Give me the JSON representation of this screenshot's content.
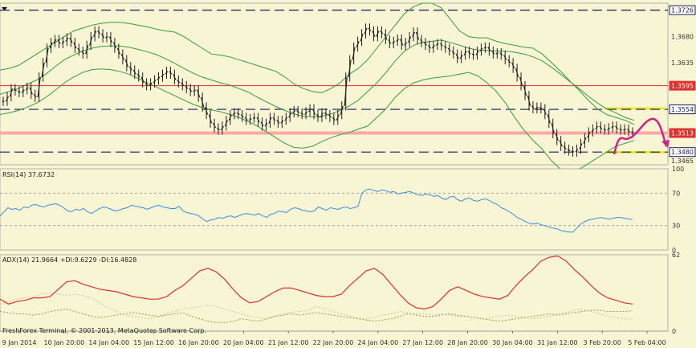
{
  "chart_data": {
    "type": "line",
    "colors": {
      "background": "#f7f5d4",
      "candle": "#222222",
      "bollinger": "#3c9a3c",
      "rsi": "#3a8fe0",
      "adx": "#e03030",
      "plus_di": "#c9c89a",
      "minus_di": "#9a9a40",
      "resistance": "#e03030",
      "support": "#ffa8a8",
      "dashed": "#1a1a5a",
      "highlight": "#e8e800",
      "forecast": "#d0208a"
    },
    "price_pane": {
      "ylim": [
        1.3458,
        1.3738
      ],
      "price_labels": [
        {
          "text": "1.3726",
          "value": 1.3726,
          "style": "dashed-box"
        },
        {
          "text": "1.3680",
          "value": 1.368,
          "style": "plain"
        },
        {
          "text": "1.3635",
          "value": 1.3635,
          "style": "plain"
        },
        {
          "text": "1.3595",
          "value": 1.3595,
          "style": "red-box"
        },
        {
          "text": "1.3554",
          "value": 1.3554,
          "style": "dashed-box"
        },
        {
          "text": "1.3513",
          "value": 1.3513,
          "style": "red-box"
        },
        {
          "text": "1.3480",
          "value": 1.348,
          "style": "dashed-box"
        },
        {
          "text": "1.3465",
          "value": 1.3465,
          "style": "plain"
        }
      ],
      "horizontal_levels": [
        {
          "value": 1.3726,
          "kind": "dashed"
        },
        {
          "value": 1.3595,
          "kind": "resistance"
        },
        {
          "value": 1.3554,
          "kind": "dashed"
        },
        {
          "value": 1.3513,
          "kind": "support"
        },
        {
          "value": 1.348,
          "kind": "dashed"
        }
      ],
      "close_series": [
        1.3568,
        1.3576,
        1.359,
        1.3586,
        1.3583,
        1.3588,
        1.3592,
        1.358,
        1.3575,
        1.361,
        1.3635,
        1.366,
        1.367,
        1.3675,
        1.3668,
        1.3672,
        1.3678,
        1.367,
        1.366,
        1.3655,
        1.365,
        1.3665,
        1.368,
        1.369,
        1.3685,
        1.3678,
        1.368,
        1.367,
        1.366,
        1.365,
        1.364,
        1.3628,
        1.3622,
        1.3615,
        1.361,
        1.36,
        1.3595,
        1.36,
        1.3605,
        1.361,
        1.3615,
        1.362,
        1.3615,
        1.3605,
        1.36,
        1.3595,
        1.359,
        1.3585,
        1.3588,
        1.3575,
        1.3558,
        1.3545,
        1.353,
        1.3522,
        1.3518,
        1.3525,
        1.3535,
        1.3545,
        1.3548,
        1.3545,
        1.354,
        1.3535,
        1.3538,
        1.354,
        1.3532,
        1.3525,
        1.353,
        1.354,
        1.3535,
        1.353,
        1.3535,
        1.354,
        1.3548,
        1.3552,
        1.3548,
        1.3545,
        1.355,
        1.3555,
        1.3545,
        1.354,
        1.3548,
        1.3545,
        1.354,
        1.3535,
        1.3545,
        1.356,
        1.361,
        1.364,
        1.3662,
        1.3672,
        1.3685,
        1.3695,
        1.369,
        1.368,
        1.369,
        1.3685,
        1.3675,
        1.3668,
        1.3672,
        1.3676,
        1.3665,
        1.367,
        1.368,
        1.3688,
        1.3675,
        1.367,
        1.3665,
        1.366,
        1.3665,
        1.3668,
        1.3664,
        1.366,
        1.3655,
        1.365,
        1.3642,
        1.3648,
        1.3655,
        1.365,
        1.3648,
        1.3655,
        1.366,
        1.3662,
        1.3655,
        1.365,
        1.3652,
        1.3648,
        1.364,
        1.3635,
        1.3625,
        1.361,
        1.3595,
        1.3578,
        1.356,
        1.3555,
        1.3558,
        1.3555,
        1.3545,
        1.353,
        1.3512,
        1.35,
        1.349,
        1.3485,
        1.3482,
        1.348,
        1.3485,
        1.3495,
        1.3505,
        1.3515,
        1.352,
        1.3525,
        1.352,
        1.3518,
        1.3522,
        1.3525,
        1.352,
        1.3518,
        1.352,
        1.3515,
        1.3513
      ],
      "upper_band": [
        1.3622,
        1.3625,
        1.363,
        1.364,
        1.365,
        1.366,
        1.367,
        1.368,
        1.369,
        1.3695,
        1.37,
        1.3703,
        1.3705,
        1.3705,
        1.3703,
        1.37,
        1.3697,
        1.3693,
        1.369,
        1.3688,
        1.368,
        1.367,
        1.366,
        1.365,
        1.3648,
        1.3645,
        1.364,
        1.3635,
        1.363,
        1.3625,
        1.362,
        1.361,
        1.3598,
        1.359,
        1.3585,
        1.3583,
        1.359,
        1.36,
        1.3615,
        1.3625,
        1.364,
        1.366,
        1.368,
        1.37,
        1.372,
        1.3732,
        1.3738,
        1.3738,
        1.373,
        1.371,
        1.369,
        1.368,
        1.3678,
        1.3678,
        1.3672,
        1.3668,
        1.3665,
        1.3662,
        1.366,
        1.365,
        1.3635,
        1.362,
        1.3603,
        1.3587,
        1.357,
        1.3555,
        1.3545,
        1.354,
        1.3535,
        1.3528
      ],
      "middle_band": [
        1.358,
        1.3585,
        1.359,
        1.3598,
        1.3605,
        1.3615,
        1.3628,
        1.364,
        1.3648,
        1.3655,
        1.366,
        1.3663,
        1.3664,
        1.3664,
        1.3662,
        1.3658,
        1.3654,
        1.3649,
        1.3642,
        1.3634,
        1.3625,
        1.3617,
        1.361,
        1.3605,
        1.36,
        1.3596,
        1.359,
        1.3584,
        1.3575,
        1.3567,
        1.3559,
        1.3552,
        1.3546,
        1.3542,
        1.3541,
        1.3542,
        1.3546,
        1.3552,
        1.356,
        1.357,
        1.3585,
        1.36,
        1.3618,
        1.3638,
        1.3655,
        1.3665,
        1.367,
        1.3672,
        1.3674,
        1.367,
        1.3665,
        1.366,
        1.3657,
        1.3656,
        1.3655,
        1.3655,
        1.3653,
        1.365,
        1.3645,
        1.3638,
        1.3627,
        1.3615,
        1.3602,
        1.359,
        1.3577,
        1.3565,
        1.3555,
        1.3548,
        1.354,
        1.3535
      ],
      "lower_band": [
        1.3545,
        1.3548,
        1.3552,
        1.3558,
        1.3565,
        1.3575,
        1.3587,
        1.36,
        1.361,
        1.3618,
        1.3623,
        1.3624,
        1.3623,
        1.362,
        1.3615,
        1.3608,
        1.36,
        1.3593,
        1.3585,
        1.3578,
        1.357,
        1.3563,
        1.3557,
        1.3553,
        1.355,
        1.3545,
        1.354,
        1.3533,
        1.3525,
        1.3515,
        1.3505,
        1.3495,
        1.3488,
        1.3487,
        1.349,
        1.3498,
        1.3505,
        1.351,
        1.3514,
        1.352,
        1.3525,
        1.354,
        1.3555,
        1.3575,
        1.359,
        1.36,
        1.3605,
        1.3608,
        1.361,
        1.3612,
        1.3615,
        1.3618,
        1.3612,
        1.36,
        1.3585,
        1.3565,
        1.354,
        1.3518,
        1.35,
        1.3485,
        1.3465,
        1.345,
        1.3445,
        1.345,
        1.346,
        1.347,
        1.348,
        1.349,
        1.3495,
        1.35
      ]
    },
    "rsi": {
      "label": "RSI(14) 37.6732",
      "levels": [
        "100",
        "70",
        "30",
        "0"
      ],
      "ylim": [
        0,
        100
      ],
      "values": [
        42,
        47,
        52,
        50,
        51,
        49,
        53,
        52,
        55,
        56,
        54,
        53,
        55,
        56,
        57,
        55,
        52,
        48,
        47,
        50,
        49,
        51,
        47,
        45,
        48,
        51,
        53,
        52,
        50,
        48,
        49,
        51,
        52,
        55,
        54,
        53,
        52,
        50,
        52,
        54,
        55,
        53,
        52,
        51,
        51,
        54,
        48,
        46,
        45,
        44,
        42,
        38,
        35,
        37,
        38,
        40,
        39,
        41,
        42,
        40,
        42,
        44,
        45,
        44,
        43,
        45,
        42,
        40,
        44,
        45,
        48,
        47,
        46,
        50,
        52,
        51,
        49,
        48,
        47,
        48,
        53,
        51,
        49,
        52,
        51,
        50,
        52,
        53,
        51,
        52,
        54,
        70,
        74,
        75,
        73,
        72,
        74,
        73,
        71,
        72,
        69,
        70,
        71,
        72,
        70,
        68,
        67,
        69,
        68,
        66,
        67,
        64,
        62,
        65,
        66,
        62,
        60,
        63,
        64,
        61,
        60,
        62,
        63,
        61,
        58,
        56,
        52,
        50,
        47,
        44,
        40,
        38,
        35,
        33,
        32,
        33,
        31,
        30,
        28,
        27,
        26,
        24,
        23,
        22,
        22,
        27,
        32,
        35,
        37,
        38,
        39,
        40,
        39,
        38,
        39,
        40,
        40,
        39,
        38,
        37.7
      ]
    },
    "adx": {
      "label": "ADX(14) 21.9664 +DI:9.6229 -DI:16.4828",
      "levels": [
        "62",
        "0"
      ],
      "ylim": [
        0,
        62
      ],
      "adx_values": [
        26,
        22,
        24,
        25,
        27,
        27,
        28,
        34,
        40,
        41,
        38,
        36,
        34,
        33,
        32,
        30,
        28,
        27,
        26,
        26,
        28,
        33,
        37,
        43,
        49,
        51,
        48,
        42,
        34,
        27,
        23,
        24,
        28,
        32,
        35,
        35,
        33,
        31,
        29,
        28,
        28,
        30,
        37,
        43,
        49,
        51,
        46,
        38,
        30,
        23,
        19,
        18,
        20,
        26,
        33,
        36,
        33,
        30,
        28,
        27,
        26,
        29,
        37,
        44,
        50,
        57,
        60,
        61,
        57,
        50,
        44,
        37,
        31,
        27,
        25,
        23,
        22
      ],
      "plus_di_values": [
        22,
        24,
        26,
        27,
        28,
        30,
        31,
        30,
        29,
        30,
        29,
        27,
        23,
        19,
        16,
        13,
        12,
        11,
        10,
        12,
        14,
        16,
        18,
        19,
        20,
        21,
        20,
        18,
        16,
        14,
        12,
        11,
        10,
        12,
        14,
        15,
        16,
        17,
        20,
        18,
        16,
        14,
        12,
        11,
        10,
        11,
        13,
        14,
        16,
        15,
        14,
        14,
        13,
        14,
        13,
        12,
        12,
        11,
        10,
        11,
        12,
        13,
        12,
        11,
        10,
        11,
        12,
        14,
        15,
        17,
        18,
        16,
        14,
        12,
        11,
        10,
        9.6
      ],
      "minus_di_values": [
        16,
        15,
        14,
        14,
        13,
        14,
        16,
        17,
        18,
        16,
        14,
        12,
        11,
        12,
        13,
        14,
        15,
        14,
        13,
        12,
        13,
        14,
        15,
        12,
        10,
        8,
        7,
        7,
        8,
        10,
        9,
        8,
        10,
        12,
        13,
        14,
        13,
        14,
        15,
        14,
        13,
        12,
        11,
        10,
        9,
        8,
        9,
        10,
        12,
        14,
        13,
        12,
        12,
        13,
        14,
        13,
        12,
        11,
        10,
        9,
        8,
        9,
        10,
        11,
        12,
        13,
        14,
        13,
        14,
        15,
        16,
        17,
        17,
        16,
        16,
        16,
        16.5
      ]
    },
    "x_tick_labels": [
      "9 Jan 2014",
      "10 Jan 20:00",
      "14 Jan 04:00",
      "15 Jan 12:00",
      "16 Jan 20:00",
      "20 Jan 04:00",
      "21 Jan 12:00",
      "22 Jan 20:00",
      "24 Jan 04:00",
      "27 Jan 12:00",
      "28 Jan 20:00",
      "30 Jan 04:00",
      "31 Jan 12:00",
      "3 Feb 20:00",
      "5 Feb 04:00"
    ],
    "footer": "FreshForex Terminal, © 2001-2013, MetaQuotes Software Corp."
  }
}
